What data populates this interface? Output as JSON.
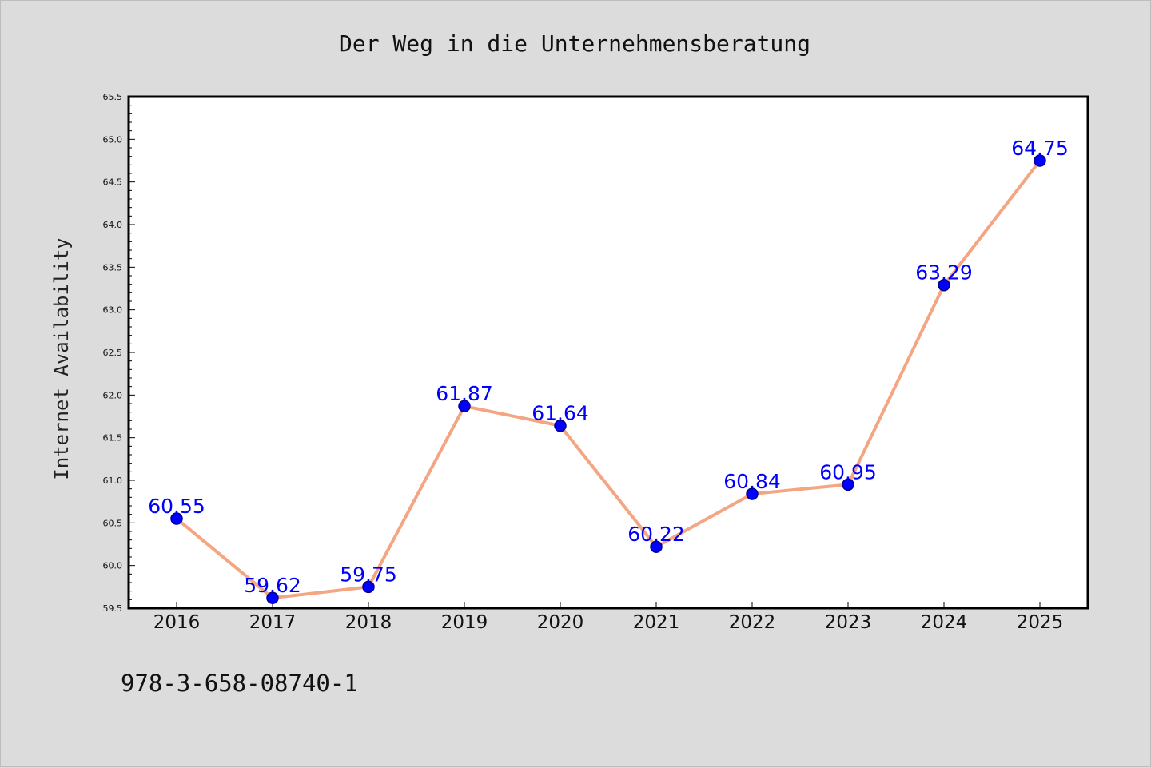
{
  "colors": {
    "line": "#f4a582",
    "marker_fill": "#0000ff",
    "marker_edge": "#00008b",
    "label": "#0000ff",
    "background": "#dcdcdc",
    "plot_background": "#ffffff"
  },
  "footer": {
    "isbn": "978-3-658-08740-1"
  },
  "chart_data": {
    "type": "line",
    "title": "Der Weg in die Unternehmensberatung",
    "xlabel": "",
    "ylabel": "Internet Availability",
    "categories": [
      "2016",
      "2017",
      "2018",
      "2019",
      "2020",
      "2021",
      "2022",
      "2023",
      "2024",
      "2025"
    ],
    "series": [
      {
        "values": [
          60.55,
          59.62,
          59.75,
          61.87,
          61.64,
          60.22,
          60.84,
          60.95,
          63.29,
          64.75
        ],
        "labels": [
          "60.55",
          "59.62",
          "59.75",
          "61.87",
          "61.64",
          "60.22",
          "60.84",
          "60.95",
          "63.29",
          "64.75"
        ]
      }
    ],
    "ylim": [
      59.5,
      65.5
    ],
    "yticks": [
      "59.5",
      "60.0",
      "60.5",
      "61.0",
      "61.5",
      "62.0",
      "62.5",
      "63.0",
      "63.5",
      "64.0",
      "64.5",
      "65.0",
      "65.5"
    ],
    "grid": false,
    "legend": "none"
  }
}
